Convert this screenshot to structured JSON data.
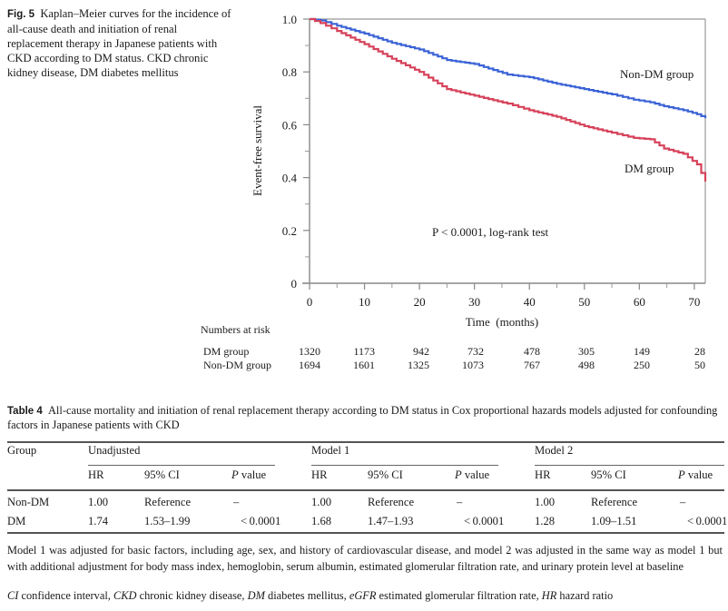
{
  "figure": {
    "label": "Fig. 5",
    "caption": "Kaplan–Meier curves for the incidence of all-cause death and initiation of renal replacement therapy in Japanese patients with CKD according to DM status. CKD chronic kidney disease, DM diabetes mellitus"
  },
  "chart_data": {
    "type": "line",
    "subtype": "kaplan-meier step",
    "title": "",
    "xlabel": "Time  (months)",
    "ylabel": "Event-free survival",
    "xlim": [
      0,
      72
    ],
    "ylim": [
      0,
      1.0
    ],
    "x_ticks": [
      0,
      10,
      20,
      30,
      40,
      50,
      60,
      70
    ],
    "x_tick_labels": [
      "0",
      "10",
      "20",
      "30",
      "40",
      "50",
      "60",
      "70"
    ],
    "x_minor_ticks": [
      5,
      15,
      25,
      35,
      45,
      55,
      65
    ],
    "y_ticks": [
      0,
      0.2,
      0.4,
      0.6,
      0.8,
      1.0
    ],
    "y_tick_labels": [
      "0",
      "0.2",
      "0.4",
      "0.6",
      "0.8",
      "1.0"
    ],
    "y_minor_ticks": [
      0.1,
      0.3,
      0.5,
      0.7,
      0.9
    ],
    "grid": false,
    "frame": "box",
    "annotation": "P < 0.0001, log-rank test",
    "series": [
      {
        "name": "Non-DM group",
        "color": "#3b63d6",
        "label": "Non-DM group",
        "x": [
          0,
          2,
          5,
          10,
          15,
          20,
          25,
          30,
          36,
          40,
          45,
          50,
          55,
          59,
          62,
          64.5,
          68,
          70.5,
          72
        ],
        "values": [
          1.0,
          0.995,
          0.975,
          0.945,
          0.91,
          0.885,
          0.845,
          0.83,
          0.79,
          0.78,
          0.755,
          0.735,
          0.715,
          0.695,
          0.685,
          0.67,
          0.655,
          0.64,
          0.625
        ]
      },
      {
        "name": "DM group",
        "color": "#d6425a",
        "label": "DM group",
        "x": [
          0,
          2,
          5,
          10,
          15,
          20,
          25,
          30,
          36,
          40,
          45,
          50,
          55,
          59,
          62,
          64.5,
          68,
          70.5,
          72
        ],
        "values": [
          1.0,
          0.985,
          0.955,
          0.905,
          0.85,
          0.8,
          0.735,
          0.71,
          0.68,
          0.655,
          0.63,
          0.595,
          0.57,
          0.55,
          0.545,
          0.51,
          0.49,
          0.45,
          0.385
        ]
      }
    ],
    "numbers_at_risk": {
      "title": "Numbers at risk",
      "times": [
        0,
        10,
        20,
        30,
        40,
        50,
        60,
        70
      ],
      "rows": [
        {
          "group": "DM group",
          "values": [
            1320,
            1173,
            942,
            732,
            478,
            305,
            149,
            28
          ]
        },
        {
          "group": "Non-DM group",
          "values": [
            1694,
            1601,
            1325,
            1073,
            767,
            498,
            250,
            50
          ]
        }
      ]
    }
  },
  "table": {
    "label": "Table 4",
    "caption": "All-cause mortality and initiation of renal replacement therapy according to DM status in Cox proportional hazards models adjusted for confounding factors in Japanese patients with CKD",
    "group_header": "Group",
    "models": [
      "Unadjusted",
      "Model 1",
      "Model 2"
    ],
    "subheaders": {
      "hr": "HR",
      "ci": "95% CI",
      "p_italic": "P",
      "p_rest": " value"
    },
    "rows": [
      {
        "group": "Non-DM",
        "cells": [
          [
            "1.00",
            "Reference",
            "–"
          ],
          [
            "1.00",
            "Reference",
            "–"
          ],
          [
            "1.00",
            "Reference",
            "–"
          ]
        ]
      },
      {
        "group": "DM",
        "cells": [
          [
            "1.74",
            "1.53–1.99",
            "< 0.0001"
          ],
          [
            "1.68",
            "1.47–1.93",
            "< 0.0001"
          ],
          [
            "1.28",
            "1.09–1.51",
            "< 0.0001"
          ]
        ]
      }
    ],
    "footnote": "Model 1 was adjusted for basic factors, including age, sex, and history of cardiovascular disease, and model 2 was adjusted in the same way as model 1 but with additional adjustment for body mass index, hemoglobin, serum albumin, estimated glomerular filtration rate, and urinary protein level at baseline",
    "abbreviations": [
      {
        "abbr": "CI",
        "text": " confidence interval, "
      },
      {
        "abbr": "CKD",
        "text": " chronic kidney disease, "
      },
      {
        "abbr": "DM",
        "text": " diabetes mellitus, "
      },
      {
        "abbr": "eGFR",
        "text": " estimated glomerular filtration rate, "
      },
      {
        "abbr": "HR",
        "text": " hazard ratio"
      }
    ]
  }
}
